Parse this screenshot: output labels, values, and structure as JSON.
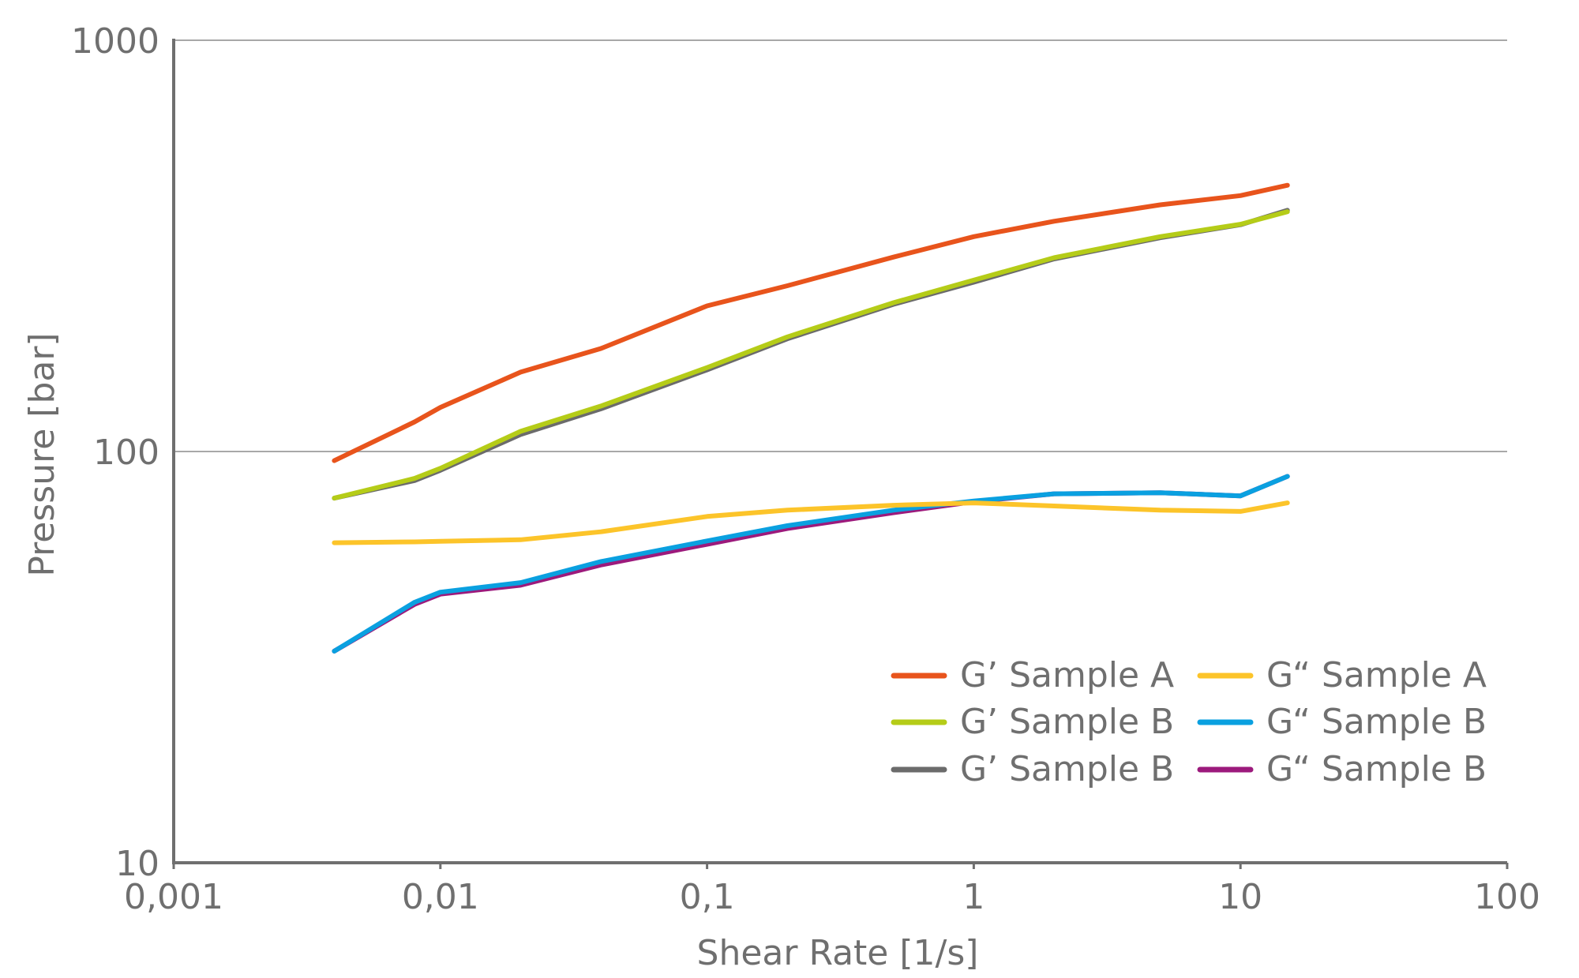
{
  "chart_data": {
    "type": "line",
    "x_label": "Shear Rate [1/s]",
    "y_label": "Pressure [bar]",
    "x": [
      0.004,
      0.008,
      0.01,
      0.02,
      0.04,
      0.1,
      0.2,
      0.5,
      1,
      2,
      5,
      10,
      15
    ],
    "xlim": [
      0.001,
      100
    ],
    "xticks": [
      {
        "value": 0.001,
        "label": "0,001"
      },
      {
        "value": 0.01,
        "label": "0,01"
      },
      {
        "value": 0.1,
        "label": "0,1"
      },
      1,
      10,
      100
    ],
    "ylim": [
      10,
      1000
    ],
    "yticks": [
      10,
      100,
      1000
    ],
    "xscale": "log",
    "yscale": "log",
    "grid": true,
    "legend": "lower right",
    "series": [
      {
        "name": "G’ Sample A",
        "color": "#e8541c",
        "values": [
          95,
          118,
          128,
          156,
          178,
          226,
          253,
          297,
          333,
          363,
          398,
          419,
          444
        ]
      },
      {
        "name": "G’ Sample B",
        "color": "#b5cc18",
        "values": [
          77,
          86,
          91,
          112,
          129,
          160,
          190,
          230,
          261,
          296,
          333,
          357,
          383
        ]
      },
      {
        "name": "G’ Sample B",
        "color": "#6b6b6b",
        "values": [
          77,
          85,
          90,
          110,
          127,
          158,
          188,
          228,
          258,
          294,
          331,
          356,
          386
        ]
      },
      {
        "name": "G“ Sample A",
        "color": "#fcc42a",
        "values": [
          60,
          60.3,
          60.5,
          61,
          63.8,
          69.5,
          72,
          74,
          75,
          73.7,
          72,
          71.5,
          75
        ]
      },
      {
        "name": "G“ Sample B",
        "color": "#0aa0e0",
        "values": [
          32.7,
          43,
          45.5,
          48,
          54,
          60.6,
          66,
          72,
          75.8,
          78.9,
          79.4,
          78,
          87
        ]
      },
      {
        "name": "G“ Sample B",
        "color": "#9c1a7c",
        "values": [
          32.7,
          42.5,
          45,
          47.3,
          53,
          59.5,
          65,
          71,
          75.5,
          78.9,
          79.4,
          78,
          87
        ]
      }
    ]
  }
}
